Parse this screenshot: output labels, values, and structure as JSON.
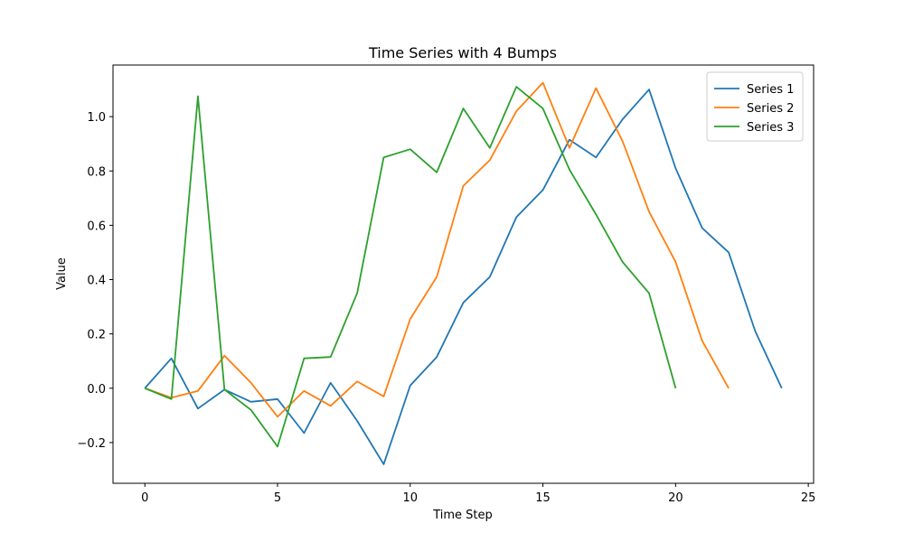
{
  "chart_data": {
    "type": "line",
    "title": "Time Series with 4 Bumps",
    "xlabel": "Time Step",
    "ylabel": "Value",
    "xlim": [
      -1.2,
      25.2
    ],
    "ylim": [
      -0.35,
      1.19
    ],
    "xticks": [
      0,
      5,
      10,
      15,
      20,
      25
    ],
    "yticks": [
      -0.2,
      0.0,
      0.2,
      0.4,
      0.6,
      0.8,
      1.0
    ],
    "legend_position": "top-right",
    "grid": false,
    "series": [
      {
        "name": "Series 1",
        "color": "#1f77b4",
        "x": [
          0,
          1,
          2,
          3,
          4,
          5,
          6,
          7,
          8,
          9,
          10,
          11,
          12,
          13,
          14,
          15,
          16,
          17,
          18,
          19,
          20,
          21,
          22,
          23,
          24
        ],
        "values": [
          0.0,
          0.11,
          -0.075,
          -0.005,
          -0.05,
          -0.04,
          -0.165,
          0.02,
          -0.12,
          -0.28,
          0.01,
          0.115,
          0.315,
          0.41,
          0.63,
          0.73,
          0.915,
          0.85,
          0.99,
          1.1,
          0.81,
          0.59,
          0.5,
          0.21,
          0.0
        ]
      },
      {
        "name": "Series 2",
        "color": "#ff7f0e",
        "x": [
          0,
          1,
          2,
          3,
          4,
          5,
          6,
          7,
          8,
          9,
          10,
          11,
          12,
          13,
          14,
          15,
          16,
          17,
          18,
          19,
          20,
          21,
          22
        ],
        "values": [
          0.0,
          -0.035,
          -0.01,
          0.12,
          0.02,
          -0.105,
          -0.01,
          -0.065,
          0.025,
          -0.03,
          0.255,
          0.41,
          0.745,
          0.84,
          1.02,
          1.125,
          0.885,
          1.105,
          0.91,
          0.65,
          0.465,
          0.175,
          0.0
        ]
      },
      {
        "name": "Series 3",
        "color": "#2ca02c",
        "x": [
          0,
          1,
          2,
          3,
          4,
          5,
          6,
          7,
          8,
          9,
          10,
          11,
          12,
          13,
          14,
          15,
          16,
          17,
          18,
          19,
          20
        ],
        "values": [
          0.0,
          -0.04,
          1.075,
          -0.005,
          -0.08,
          -0.215,
          0.11,
          0.115,
          0.35,
          0.85,
          0.88,
          0.795,
          1.03,
          0.885,
          1.11,
          1.03,
          0.805,
          0.64,
          0.465,
          0.35,
          0.0
        ]
      }
    ]
  }
}
